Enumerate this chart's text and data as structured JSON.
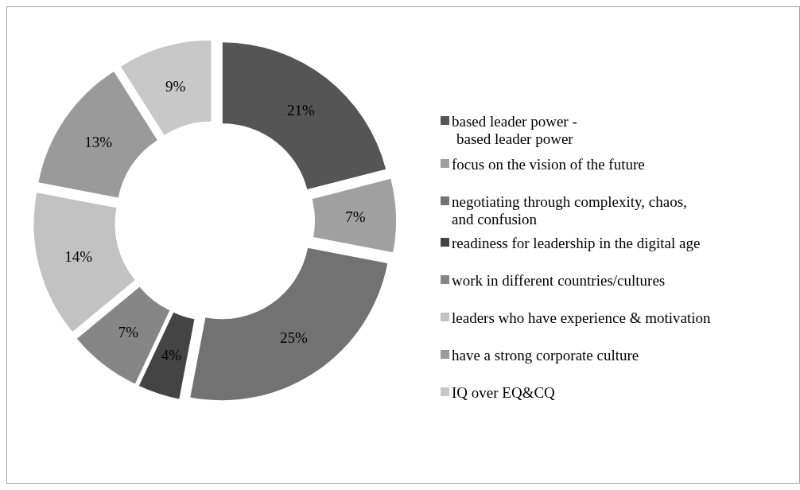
{
  "chart_data": {
    "type": "donut",
    "categories": [
      "based leader power -\nbased leader power",
      "focus on the vision of the future",
      "negotiating through complexity, chaos,\nand confusion",
      "readiness for leadership in the digital age",
      "work in different countries/cultures",
      "leaders who have experience & motivation",
      "have a strong corporate culture",
      "IQ over EQ&CQ"
    ],
    "values": [
      21,
      7,
      25,
      4,
      7,
      14,
      13,
      9
    ],
    "colors": [
      "#555555",
      "#a0a0a0",
      "#727272",
      "#444444",
      "#868686",
      "#c2c2c2",
      "#9a9a9a",
      "#c8c8c8"
    ],
    "value_labels": [
      "21%",
      "7%",
      "25%",
      "4%",
      "7%",
      "14%",
      "13%",
      "9%"
    ],
    "legend": "right"
  }
}
